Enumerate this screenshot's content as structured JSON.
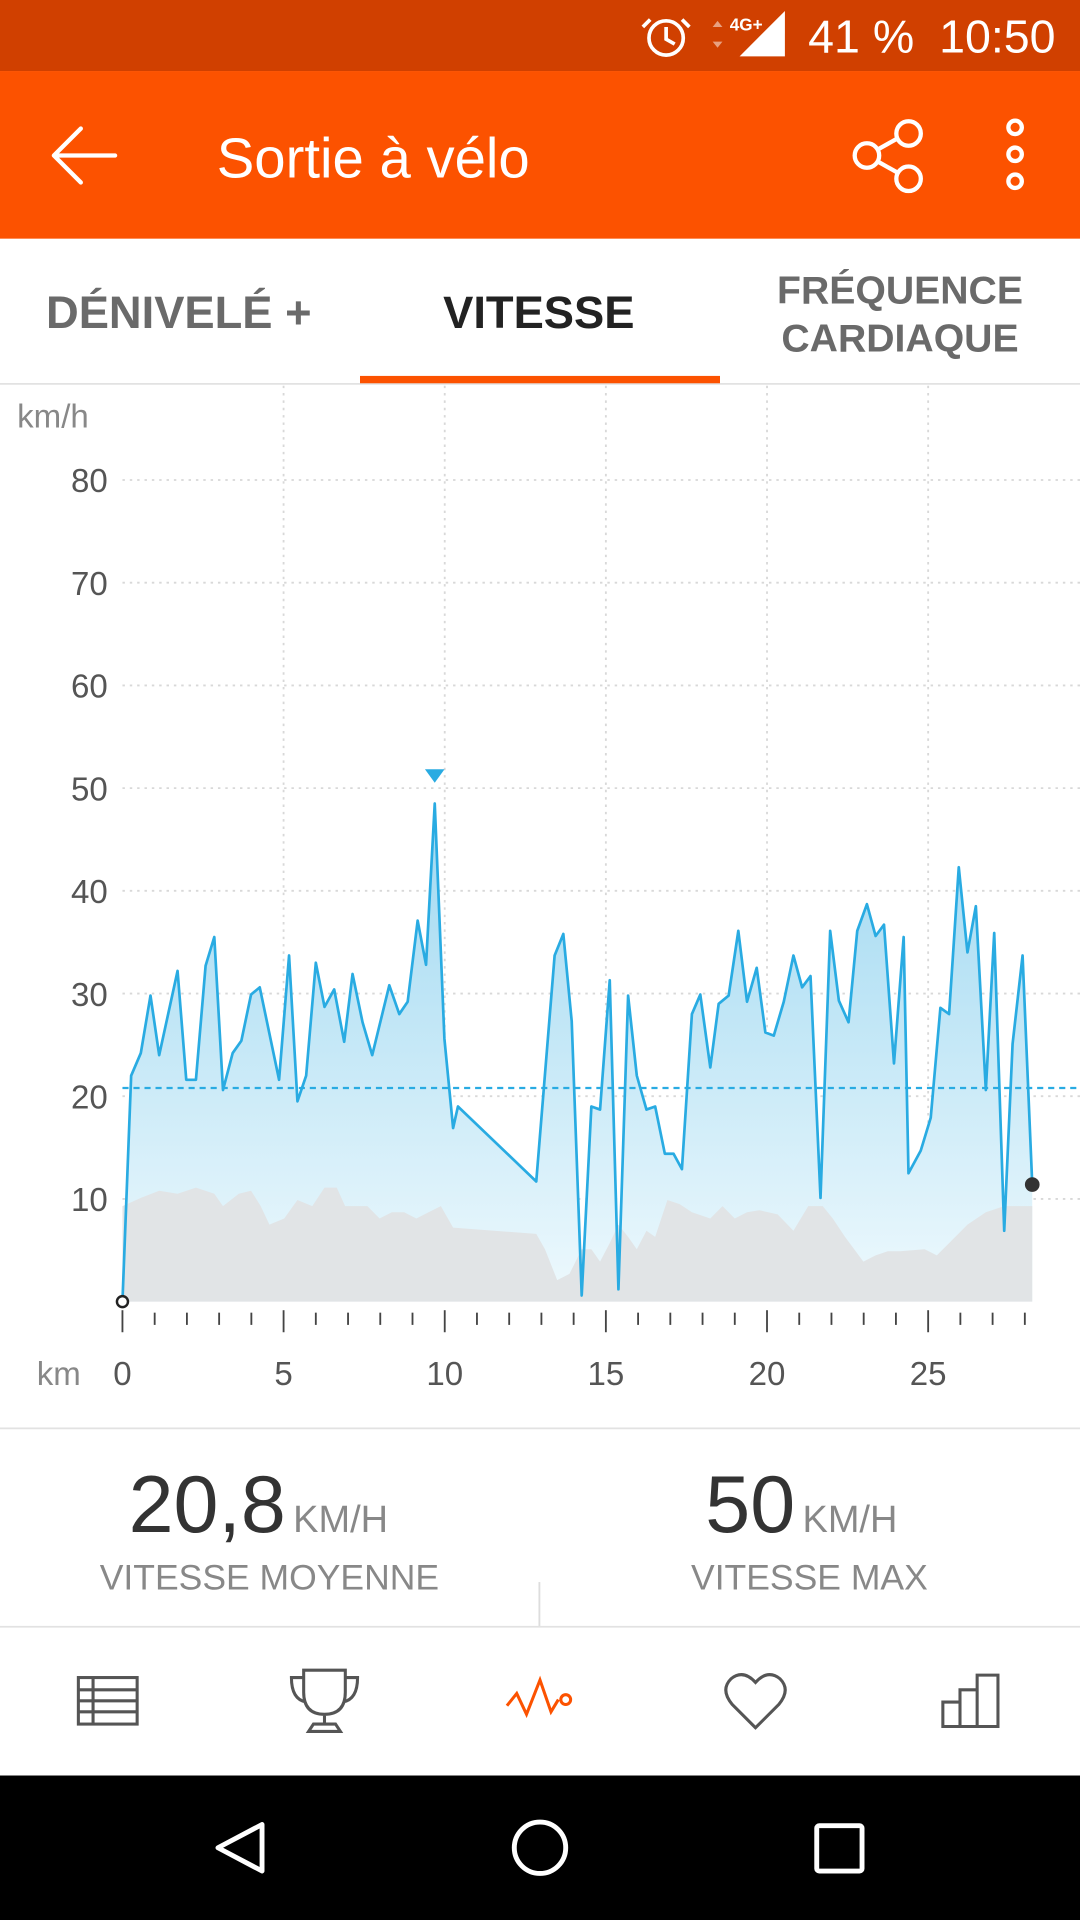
{
  "status_bar": {
    "network": "4G+",
    "battery": "41 %",
    "time": "10:50"
  },
  "app_bar": {
    "title": "Sortie à vélo"
  },
  "tabs": [
    {
      "label": "DÉNIVELÉ +"
    },
    {
      "label": "VITESSE",
      "selected": true
    },
    {
      "lines": [
        "FRÉQUENCE",
        "CARDIAQUE"
      ]
    }
  ],
  "chart_data": {
    "type": "area",
    "y_label": "km/h",
    "x_label": "km",
    "xlim": [
      0,
      28.23
    ],
    "ylim": [
      0,
      80
    ],
    "xticks": [
      0,
      5,
      10,
      15,
      20,
      25
    ],
    "xminorticks": [
      1,
      2,
      3,
      4,
      6,
      7,
      8,
      9,
      11,
      12,
      13,
      14,
      16,
      17,
      18,
      19,
      21,
      22,
      23,
      24,
      26,
      27,
      28
    ],
    "yticks": [
      10,
      20,
      30,
      40,
      50,
      60,
      70,
      80
    ],
    "grid": true,
    "average": 20.8,
    "series": [
      {
        "color": "#29abe2",
        "x": [
          0,
          0.27,
          0.57,
          0.87,
          1.14,
          1.71,
          1.98,
          2.28,
          2.58,
          2.85,
          3.12,
          3.42,
          3.69,
          3.99,
          4.26,
          4.86,
          5.17,
          5.43,
          5.7,
          6,
          6.27,
          6.57,
          6.88,
          7.14,
          7.45,
          7.75,
          8.28,
          8.59,
          8.85,
          9.16,
          9.42,
          9.69,
          9.99,
          10.26,
          10.41,
          12.84,
          13.41,
          13.68,
          13.94,
          14.25,
          14.55,
          14.82,
          15.12,
          15.39,
          15.69,
          15.96,
          16.26,
          16.53,
          16.83,
          17.1,
          17.36,
          17.67,
          17.93,
          18.24,
          18.5,
          18.81,
          19.11,
          19.38,
          19.68,
          19.95,
          20.21,
          20.52,
          20.82,
          21.09,
          21.35,
          21.66,
          21.96,
          22.23,
          22.53,
          22.8,
          23.1,
          23.37,
          23.63,
          23.94,
          24.24,
          24.39,
          24.77,
          25.08,
          25.38,
          25.65,
          25.95,
          26.22,
          26.48,
          26.79,
          27.05,
          27.36,
          27.62,
          27.93,
          28.23
        ],
        "values": [
          0,
          22,
          24.2,
          29.8,
          24,
          32.2,
          21.6,
          21.6,
          32.7,
          35.5,
          20.6,
          24.2,
          25.4,
          29.9,
          30.6,
          21.6,
          33.7,
          19.5,
          22,
          33,
          28.7,
          30.4,
          25.3,
          31.9,
          27.2,
          24,
          30.8,
          28,
          29.2,
          37.1,
          32.8,
          48.5,
          25.6,
          16.9,
          19,
          11.7,
          33.7,
          35.8,
          27.3,
          0.6,
          19,
          18.7,
          31.3,
          1.2,
          29.8,
          22,
          18.7,
          19,
          14.4,
          14.4,
          12.9,
          28,
          29.9,
          22.8,
          29,
          29.8,
          36.1,
          29.2,
          32.5,
          26.2,
          25.9,
          29.2,
          33.7,
          30.6,
          31.7,
          10.1,
          36.1,
          29.3,
          27.2,
          36.1,
          38.7,
          35.6,
          36.7,
          23.2,
          35.5,
          12.5,
          14.7,
          17.9,
          28.6,
          28,
          42.3,
          34,
          38.5,
          20.6,
          35.9,
          6.9,
          25.1,
          33.7,
          11.4
        ]
      },
      {
        "color": "#e1e4e6",
        "x": [
          0,
          0.57,
          1.14,
          1.71,
          2.28,
          2.85,
          3.12,
          3.61,
          3.99,
          4.29,
          4.56,
          5.02,
          5.43,
          5.89,
          6.27,
          6.65,
          6.91,
          7.6,
          7.98,
          8.36,
          8.74,
          9.12,
          9.5,
          9.88,
          10.26,
          12.84,
          13.11,
          13.49,
          13.87,
          14.25,
          14.55,
          14.82,
          15.12,
          15.39,
          15.69,
          15.96,
          16.26,
          16.53,
          16.91,
          17.29,
          17.67,
          18.24,
          18.62,
          19,
          19.38,
          19.76,
          20.33,
          20.82,
          21.28,
          21.73,
          22.04,
          22.42,
          22.99,
          23.37,
          23.75,
          24.13,
          24.89,
          25.27,
          25.65,
          26.22,
          26.79,
          27.36,
          28.23
        ],
        "values": [
          9.3,
          10.1,
          10.8,
          10.5,
          11.1,
          10.5,
          9.3,
          10.5,
          10.8,
          9.3,
          7.5,
          8.1,
          9.9,
          9.3,
          11.1,
          11.1,
          9.3,
          9.3,
          8.1,
          8.7,
          8.7,
          8.1,
          8.7,
          9.3,
          7.2,
          6.6,
          5.1,
          2.1,
          2.7,
          5.1,
          5.1,
          3.9,
          5.7,
          7.5,
          6.3,
          5.1,
          6.9,
          6.3,
          9.9,
          9.5,
          8.7,
          8.1,
          9.3,
          8.1,
          8.7,
          8.9,
          8.5,
          6.9,
          9.3,
          9.3,
          8.1,
          6.3,
          3.9,
          4.5,
          4.9,
          4.9,
          5.1,
          4.5,
          5.7,
          7.5,
          8.7,
          9.3,
          9.3
        ]
      }
    ]
  },
  "stats": [
    {
      "value": "20,8",
      "unit": "KM/H",
      "label": "VITESSE MOYENNE"
    },
    {
      "value": "50",
      "unit": "KM/H",
      "label": "VITESSE MAX"
    }
  ]
}
